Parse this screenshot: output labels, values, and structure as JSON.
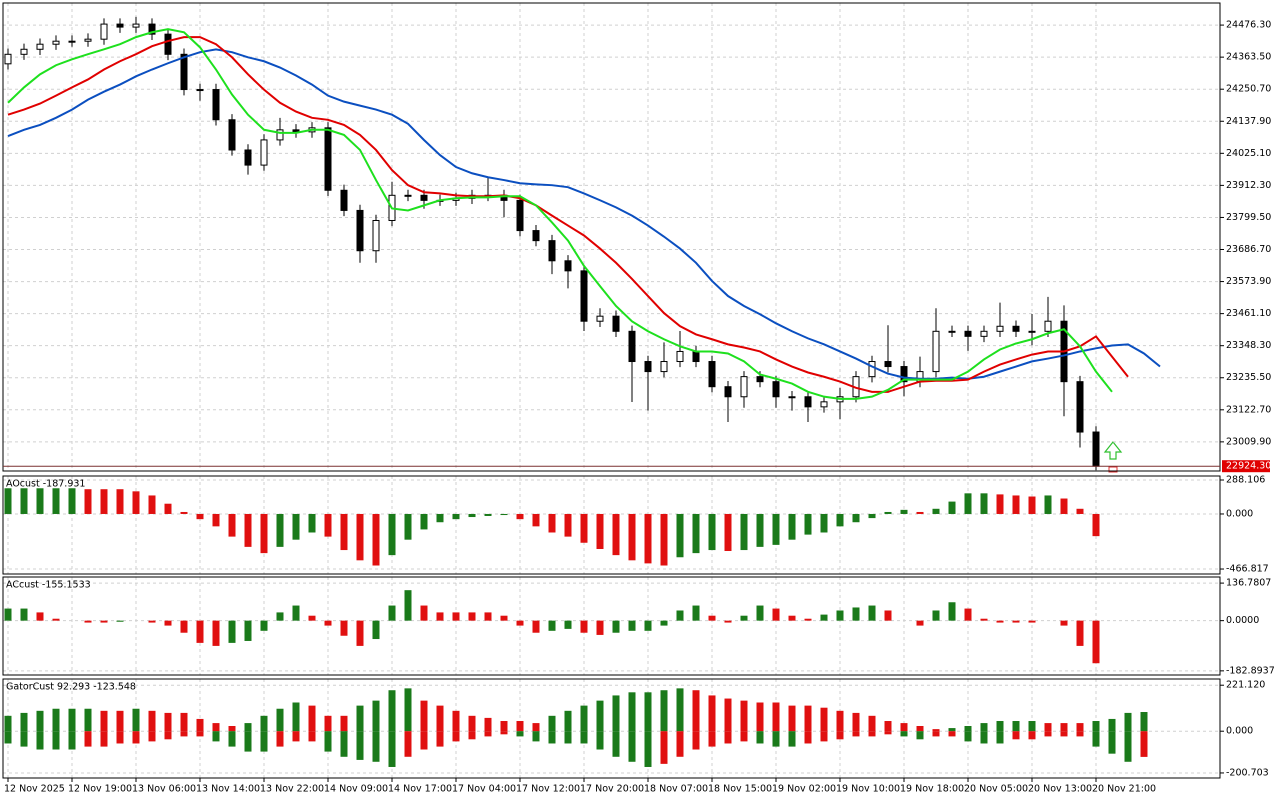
{
  "chart_data": [
    {
      "type": "candlestick",
      "categories": [
        "12 Nov 2025",
        null,
        null,
        null,
        "12 Nov 19:00",
        null,
        null,
        null,
        "13 Nov 06:00",
        null,
        null,
        null,
        "13 Nov 14:00",
        null,
        null,
        null,
        "13 Nov 22:00",
        null,
        null,
        null,
        "14 Nov 09:00",
        null,
        null,
        null,
        "14 Nov 17:00",
        null,
        null,
        null,
        "17 Nov 04:00",
        null,
        null,
        null,
        "17 Nov 12:00",
        null,
        null,
        null,
        "17 Nov 20:00",
        null,
        null,
        null,
        "18 Nov 07:00",
        null,
        null,
        null,
        "18 Nov 15:00",
        null,
        null,
        null,
        "19 Nov 02:00",
        null,
        null,
        null,
        "19 Nov 10:00",
        null,
        null,
        null,
        "19 Nov 18:00",
        null,
        null,
        null,
        "20 Nov 05:00",
        null,
        null,
        null,
        "20 Nov 13:00",
        null,
        null,
        null,
        "20 Nov 21:00",
        null,
        null,
        null,
        null
      ],
      "open": [
        24340,
        24373.5,
        24391.2,
        24409.0,
        24419.6,
        24419.6,
        24426.7,
        24479.8,
        24469.2,
        24479.8,
        24444.4,
        24373.5,
        24249.5,
        24249.5,
        24143.2,
        24036.8,
        23983.7,
        24072.3,
        24107.7,
        24100.6,
        24114.8,
        23895.1,
        23824.2,
        23682.4,
        23788.8,
        23877.4,
        23877.4,
        23859.6,
        23859.6,
        23866.7,
        23877.4,
        23877.4,
        23859.6,
        23753.3,
        23717.9,
        23647.0,
        23611.6,
        23434.4,
        23452.1,
        23398.9,
        23292.6,
        23257.2,
        23292.6,
        23328.0,
        23292.6,
        23204.0,
        23168.6,
        23239.4,
        23221.7,
        23168.6,
        23168.6,
        23133.1,
        23150.8,
        23168.6,
        23239.4,
        23292.6,
        23274.9,
        23221.7,
        23257.2,
        23398.9,
        23398.9,
        23381.2,
        23398.9,
        23416.6,
        23398.9,
        23398.9,
        23434.4,
        23221.7,
        23044.5,
        null,
        null,
        null,
        null
      ],
      "high": [
        24394,
        24411,
        24429,
        24440,
        24440,
        24447,
        24500,
        24500,
        24505,
        24500,
        24464,
        24394,
        24270,
        24270,
        24163,
        24057,
        24092,
        24150,
        24128,
        24135,
        24135,
        23915,
        23844,
        23809,
        23925,
        23897,
        23897,
        23880,
        23887,
        23897,
        23940,
        23897,
        23880,
        23773,
        23738,
        23667,
        23632,
        23480,
        23472,
        23419,
        23313,
        23360,
        23400,
        23348,
        23313,
        23224,
        23259,
        23259,
        23242,
        23189,
        23189,
        23171,
        23200,
        23259,
        23313,
        23420,
        23295,
        23310,
        23480,
        23419,
        23419,
        23419,
        23500,
        23437,
        23460,
        23520,
        23490,
        23242,
        23065,
        null,
        null,
        null,
        null
      ],
      "low": [
        24320,
        24354,
        24371,
        24389,
        24400,
        24400,
        24407,
        24449,
        24449,
        24424,
        24353,
        24229,
        24210,
        24123,
        24017,
        23950,
        23964,
        24052,
        24080,
        24080,
        23875,
        23804,
        23640,
        23640,
        23769,
        23857,
        23830,
        23840,
        23840,
        23847,
        23857,
        23800,
        23733,
        23698,
        23600,
        23550,
        23400,
        23414,
        23379,
        23150,
        23120,
        23237,
        23273,
        23273,
        23184,
        23080,
        23130,
        23202,
        23130,
        23120,
        23080,
        23113,
        23090,
        23149,
        23219,
        23255,
        23170,
        23202,
        23237,
        23379,
        23330,
        23361,
        23379,
        23379,
        23350,
        23379,
        23100,
        22990,
        22910,
        null,
        null,
        null,
        null
      ],
      "close": [
        24373.5,
        24391.2,
        24409.0,
        24419.6,
        24419.6,
        24426.7,
        24479.8,
        24469.2,
        24479.8,
        24444.4,
        24373.5,
        24249.5,
        24249.5,
        24143.2,
        24036.8,
        23983.7,
        24072.3,
        24107.7,
        24100.6,
        24114.8,
        23895.1,
        23824.2,
        23682.4,
        23788.8,
        23877.4,
        23877.4,
        23859.6,
        23859.6,
        23866.7,
        23877.4,
        23877.4,
        23859.6,
        23753.3,
        23717.9,
        23647.0,
        23611.6,
        23434.4,
        23452.1,
        23398.9,
        23292.6,
        23257.2,
        23292.6,
        23328.0,
        23292.6,
        23204.0,
        23168.6,
        23239.4,
        23221.7,
        23168.6,
        23168.6,
        23133.1,
        23150.8,
        23168.6,
        23239.4,
        23292.6,
        23274.9,
        23221.7,
        23257.2,
        23398.9,
        23398.9,
        23381.2,
        23398.9,
        23416.6,
        23398.9,
        23398.9,
        23434.4,
        23221.7,
        23044.5,
        22924.3,
        null,
        null,
        null,
        null
      ],
      "up_color": "#ffffff",
      "down_color": "#000000",
      "lines": [
        {
          "color": "#0b4fc0",
          "values": [
            24086,
            24108,
            24125,
            24150,
            24179,
            24214,
            24242,
            24267,
            24296,
            24320,
            24342,
            24363,
            24381,
            24391,
            24381,
            24363,
            24349,
            24327,
            24299,
            24267,
            24228,
            24207,
            24193,
            24179,
            24161,
            24129,
            24072,
            24019,
            23977,
            23955,
            23941,
            23931,
            23920,
            23916,
            23913,
            23906,
            23884,
            23860,
            23835,
            23806,
            23771,
            23732,
            23690,
            23640,
            23576,
            23523,
            23488,
            23459,
            23427,
            23399,
            23374,
            23353,
            23328,
            23303,
            23275,
            23250,
            23236,
            23232,
            23232,
            23236,
            23232,
            23239,
            23257,
            23275,
            23293,
            23303,
            23314,
            23328,
            23339,
            23349,
            23353,
            23321,
            23275
          ]
        },
        {
          "color": "#e00000",
          "values": [
            24161,
            24179,
            24200,
            24228,
            24257,
            24285,
            24320,
            24349,
            24374,
            24402,
            24420,
            24434,
            24434,
            24409,
            24363,
            24303,
            24249,
            24203,
            24172,
            24150,
            24143,
            24125,
            24090,
            24037,
            23966,
            23913,
            23888,
            23884,
            23877,
            23874,
            23874,
            23877,
            23867,
            23842,
            23806,
            23771,
            23736,
            23690,
            23640,
            23583,
            23523,
            23463,
            23417,
            23388,
            23371,
            23353,
            23342,
            23328,
            23300,
            23275,
            23254,
            23239,
            23222,
            23200,
            23186,
            23186,
            23204,
            23222,
            23225,
            23225,
            23229,
            23257,
            23282,
            23300,
            23317,
            23328,
            23328,
            23346,
            23381,
            23310,
            23239,
            null,
            null
          ]
        },
        {
          "color": "#1ee01e",
          "values": [
            24203,
            24257,
            24303,
            24335,
            24356,
            24374,
            24391,
            24409,
            24434,
            24451,
            24462,
            24451,
            24398,
            24320,
            24232,
            24161,
            24108,
            24097,
            24097,
            24108,
            24108,
            24090,
            24037,
            23931,
            23831,
            23824,
            23842,
            23860,
            23867,
            23870,
            23870,
            23874,
            23874,
            23842,
            23782,
            23718,
            23629,
            23558,
            23488,
            23434,
            23399,
            23371,
            23346,
            23328,
            23328,
            23321,
            23293,
            23247,
            23232,
            23215,
            23186,
            23169,
            23161,
            23161,
            23169,
            23193,
            23229,
            23229,
            23229,
            23229,
            23257,
            23300,
            23335,
            23356,
            23371,
            23392,
            23406,
            23346,
            23257,
            23186,
            null,
            null,
            null
          ]
        }
      ],
      "ylim": [
        22907.4,
        24554.0
      ],
      "yticks": [
        {
          "value": 24476.3,
          "label": "24476.30"
        },
        {
          "value": 24363.5,
          "label": "24363.50"
        },
        {
          "value": 24250.7,
          "label": "24250.70"
        },
        {
          "value": 24137.9,
          "label": "24137.90"
        },
        {
          "value": 24025.1,
          "label": "24025.10"
        },
        {
          "value": 23912.3,
          "label": "23912.30"
        },
        {
          "value": 23799.5,
          "label": "23799.50"
        },
        {
          "value": 23686.7,
          "label": "23686.70"
        },
        {
          "value": 23573.9,
          "label": "23573.90"
        },
        {
          "value": 23461.1,
          "label": "23461.10"
        },
        {
          "value": 23348.3,
          "label": "23348.30"
        },
        {
          "value": 23235.5,
          "label": "23235.50"
        },
        {
          "value": 23122.7,
          "label": "23122.70"
        },
        {
          "value": 23009.9,
          "label": "23009.90"
        }
      ],
      "grid": true,
      "price_line": {
        "value": 22924.3,
        "label": "22924.30",
        "color": "#e00000"
      }
    },
    {
      "type": "bar",
      "title": "AOcust -187.931",
      "up_color": "#1a7a1a",
      "down_color": "#e01010",
      "values": [
        218,
        218,
        218,
        218,
        218,
        210,
        210,
        210,
        192,
        157,
        87,
        17,
        -44,
        -105,
        -192,
        -279,
        -332,
        -279,
        -218,
        -157,
        -192,
        -306,
        -393,
        -437,
        -349,
        -218,
        -131,
        -70,
        -44,
        -26,
        -17,
        -9,
        -44,
        -105,
        -157,
        -192,
        -244,
        -297,
        -349,
        -393,
        -419,
        -437,
        -367,
        -332,
        -306,
        -314,
        -306,
        -279,
        -262,
        -218,
        -175,
        -157,
        -105,
        -70,
        -35,
        17,
        35,
        17,
        44,
        105,
        175,
        175,
        166,
        157,
        148,
        157,
        131,
        44,
        -187.931,
        null,
        null,
        null,
        null
      ],
      "ylim": [
        -509,
        322
      ],
      "yticks": [
        288.106,
        {
          "value": 0,
          "label": "0.000"
        },
        -466.817
      ],
      "grid": true
    },
    {
      "type": "bar",
      "title": "ACcust -155.1533",
      "up_color": "#1a7a1a",
      "down_color": "#e01010",
      "values": [
        44,
        44,
        30,
        7,
        0,
        -7,
        -7,
        -4,
        0,
        -7,
        -18,
        -44,
        -81,
        -92,
        -81,
        -74,
        -37,
        30,
        55,
        18,
        -18,
        -55,
        -92,
        -67,
        55,
        111,
        55,
        30,
        30,
        30,
        30,
        18,
        -18,
        -44,
        -37,
        -30,
        -44,
        -52,
        -44,
        -37,
        -37,
        -18,
        37,
        55,
        18,
        -7,
        18,
        55,
        44,
        18,
        7,
        22,
        37,
        48,
        55,
        37,
        0,
        -18,
        37,
        67,
        44,
        7,
        -7,
        -7,
        -7,
        0,
        -18,
        -92,
        -155.1533,
        null,
        null,
        null,
        null
      ],
      "ylim": [
        -198,
        159
      ],
      "yticks": [
        136.7807,
        {
          "value": 0,
          "label": "0.0000"
        },
        -182.8937
      ],
      "grid": true
    },
    {
      "type": "gator",
      "title": "GatorCust 92.293 -123.548",
      "up_color": "#1a7a1a",
      "down_color": "#e01010",
      "upper": [
        74,
        88,
        98,
        108,
        108,
        108,
        98,
        98,
        108,
        98,
        88,
        88,
        59,
        39,
        25,
        39,
        74,
        108,
        138,
        123,
        74,
        74,
        123,
        147,
        197,
        206,
        147,
        123,
        98,
        74,
        64,
        49,
        49,
        39,
        74,
        98,
        123,
        147,
        172,
        187,
        187,
        197,
        206,
        197,
        172,
        157,
        147,
        138,
        138,
        123,
        123,
        113,
        98,
        88,
        74,
        49,
        39,
        25,
        10,
        15,
        25,
        39,
        49,
        49,
        49,
        39,
        39,
        39,
        49,
        59,
        88,
        92.293,
        null
      ],
      "lower": [
        -59,
        -74,
        -88,
        -88,
        -88,
        -74,
        -74,
        -59,
        -59,
        -49,
        -39,
        -25,
        -25,
        -49,
        -74,
        -98,
        -98,
        -74,
        -49,
        -49,
        -98,
        -123,
        -138,
        -147,
        -172,
        -123,
        -88,
        -74,
        -49,
        -39,
        -25,
        -15,
        -25,
        -49,
        -59,
        -59,
        -59,
        -88,
        -123,
        -147,
        -172,
        -157,
        -123,
        -88,
        -74,
        -59,
        -49,
        -59,
        -74,
        -74,
        -59,
        -49,
        -39,
        -25,
        -25,
        -15,
        -25,
        -39,
        -25,
        -25,
        -49,
        -59,
        -59,
        -39,
        -39,
        -25,
        -25,
        -25,
        -74,
        -108,
        -147,
        -123.548,
        null
      ],
      "ylim": [
        -225,
        251
      ],
      "yticks": [
        {
          "value": 221.12,
          "label": "221.120"
        },
        {
          "value": 0,
          "label": "0.000"
        },
        -200.703
      ],
      "grid": true
    }
  ]
}
